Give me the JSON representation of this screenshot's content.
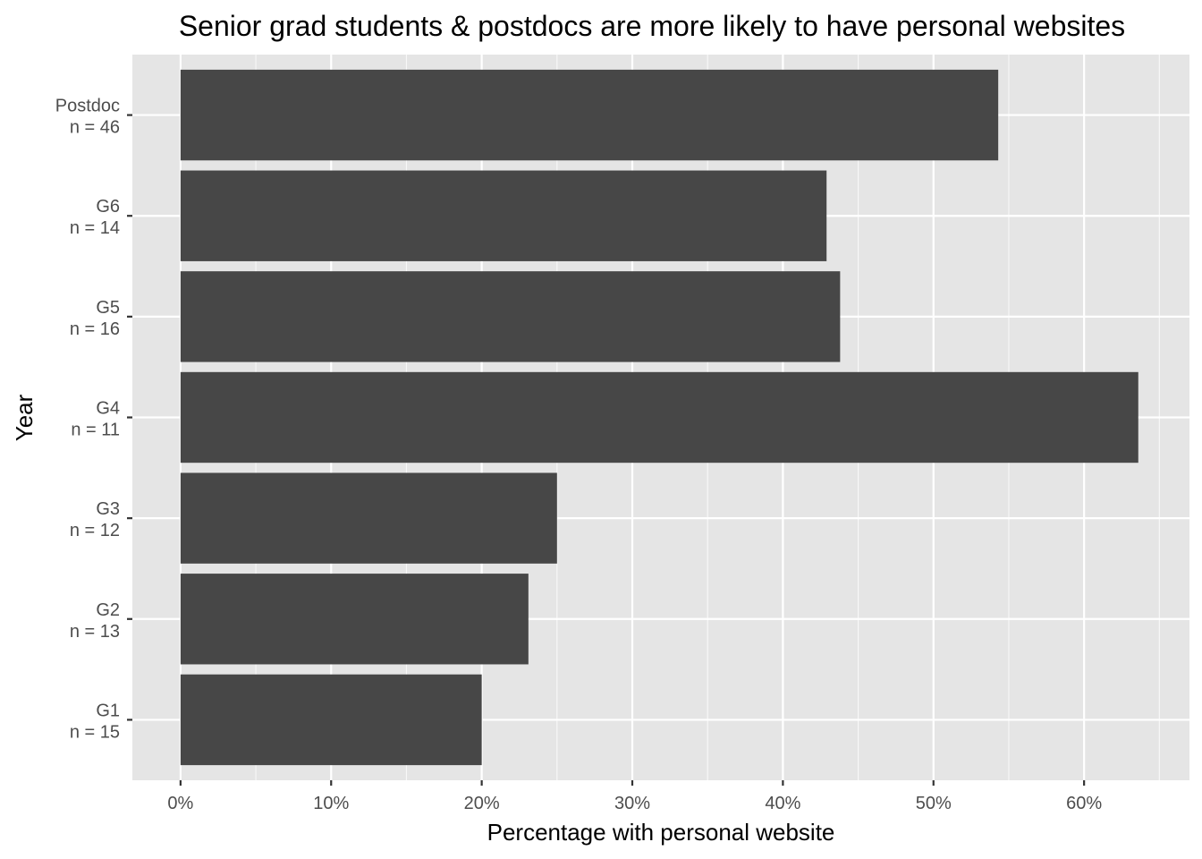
{
  "chart_data": {
    "type": "bar",
    "orientation": "horizontal",
    "title": "Senior grad students & postdocs are more likely to have personal websites",
    "xlabel": "Percentage with personal website",
    "ylabel": "Year",
    "xlim": [
      -0.032,
      0.67
    ],
    "x_ticks": [
      0,
      0.1,
      0.2,
      0.3,
      0.4,
      0.5,
      0.6
    ],
    "x_tick_labels": [
      "0%",
      "10%",
      "20%",
      "30%",
      "40%",
      "50%",
      "60%"
    ],
    "categories": [
      {
        "line1": "Postdoc",
        "line2": "n = 46"
      },
      {
        "line1": "G6",
        "line2": "n = 14"
      },
      {
        "line1": "G5",
        "line2": "n = 16"
      },
      {
        "line1": "G4",
        "line2": "n = 11"
      },
      {
        "line1": "G3",
        "line2": "n = 12"
      },
      {
        "line1": "G2",
        "line2": "n = 13"
      },
      {
        "line1": "G1",
        "line2": "n = 15"
      }
    ],
    "values": [
      0.543,
      0.429,
      0.438,
      0.636,
      0.25,
      0.231,
      0.2
    ],
    "grid": true,
    "bar_color": "#474747",
    "panel_color": "#e5e5e5"
  }
}
